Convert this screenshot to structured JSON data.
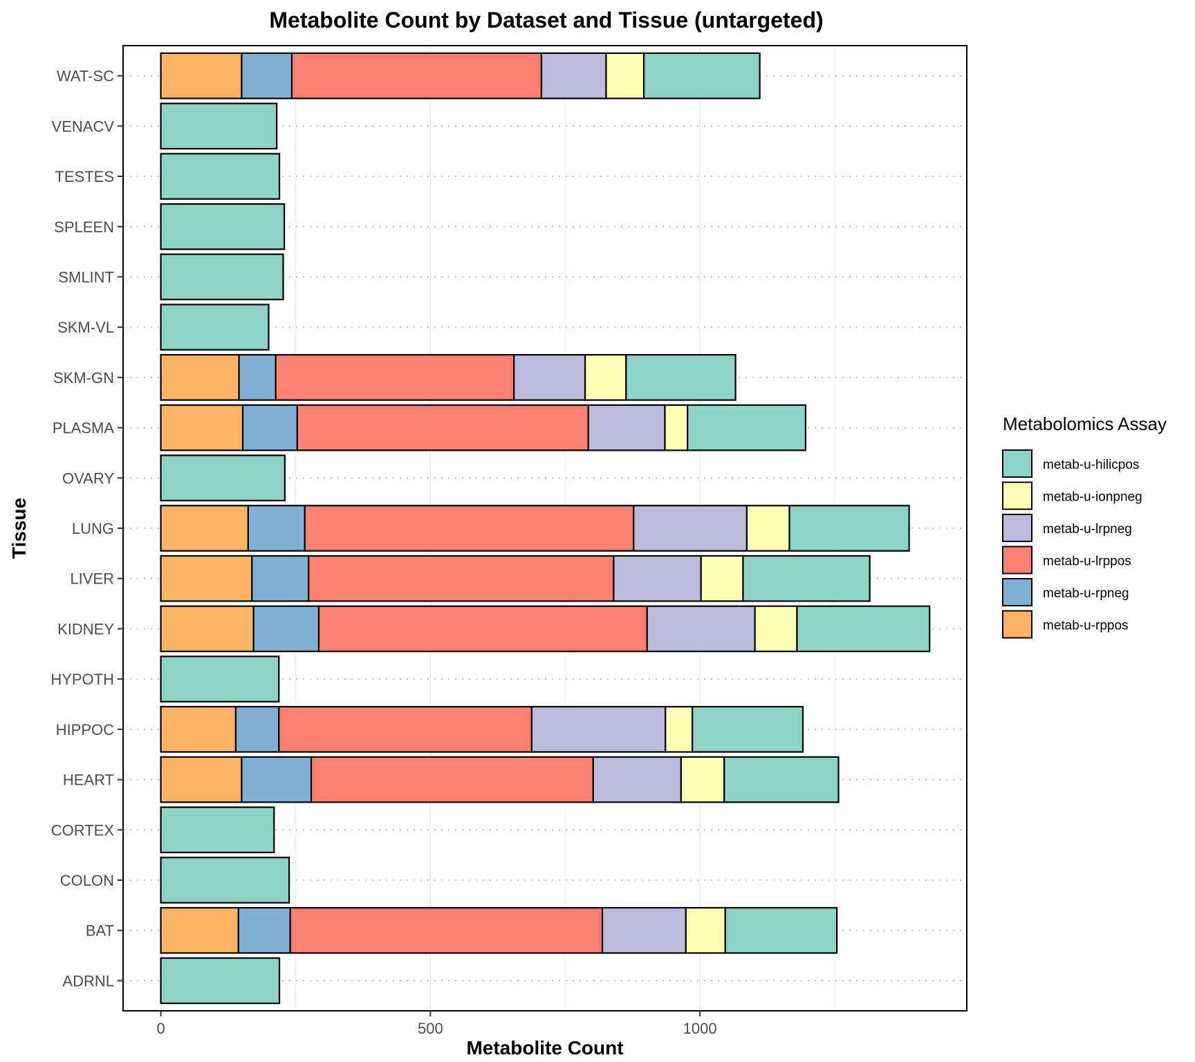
{
  "chart_data": {
    "type": "bar",
    "orientation": "horizontal",
    "stacked": true,
    "title": "Metabolite Count by Dataset and Tissue (untargeted)",
    "xlabel": "Metabolite Count",
    "ylabel": "Tissue",
    "xlim": [
      -70,
      1495
    ],
    "xticks": [
      0,
      500,
      1000
    ],
    "grid": "vertical major/minor lines; dotted horizontal row guides",
    "legend": {
      "title": "Metabolomics Assay",
      "placement": "right",
      "entries": [
        "metab-u-hilicpos",
        "metab-u-ionpneg",
        "metab-u-lrpneg",
        "metab-u-lrppos",
        "metab-u-rpneg",
        "metab-u-rppos"
      ]
    },
    "stack_order": [
      "metab-u-rppos",
      "metab-u-rpneg",
      "metab-u-lrppos",
      "metab-u-lrpneg",
      "metab-u-ionpneg",
      "metab-u-hilicpos"
    ],
    "colors": {
      "metab-u-hilicpos": "#8DD3C7",
      "metab-u-ionpneg": "#FFFFB3",
      "metab-u-lrpneg": "#BEBADA",
      "metab-u-lrppos": "#FB8072",
      "metab-u-rpneg": "#80B1D3",
      "metab-u-rppos": "#FDB462"
    },
    "categories": [
      "WAT-SC",
      "VENACV",
      "TESTES",
      "SPLEEN",
      "SMLINT",
      "SKM-VL",
      "SKM-GN",
      "PLASMA",
      "OVARY",
      "LUNG",
      "LIVER",
      "KIDNEY",
      "HYPOTH",
      "HIPPOC",
      "HEART",
      "CORTEX",
      "COLON",
      "BAT",
      "ADRNL"
    ],
    "series": [
      {
        "name": "metab-u-rppos",
        "values": [
          150,
          0,
          0,
          0,
          0,
          0,
          145,
          152,
          0,
          162,
          169,
          172,
          0,
          139,
          150,
          0,
          0,
          144,
          0
        ]
      },
      {
        "name": "metab-u-rpneg",
        "values": [
          93,
          0,
          0,
          0,
          0,
          0,
          68,
          101,
          0,
          105,
          105,
          121,
          0,
          80,
          129,
          0,
          0,
          96,
          0
        ]
      },
      {
        "name": "metab-u-lrppos",
        "values": [
          463,
          0,
          0,
          0,
          0,
          0,
          442,
          540,
          0,
          610,
          566,
          609,
          0,
          469,
          523,
          0,
          0,
          579,
          0
        ]
      },
      {
        "name": "metab-u-lrpneg",
        "values": [
          120,
          0,
          0,
          0,
          0,
          0,
          132,
          142,
          0,
          210,
          162,
          200,
          0,
          248,
          163,
          0,
          0,
          155,
          0
        ]
      },
      {
        "name": "metab-u-ionpneg",
        "values": [
          70,
          0,
          0,
          0,
          0,
          0,
          76,
          42,
          0,
          79,
          78,
          78,
          0,
          50,
          80,
          0,
          0,
          73,
          0
        ]
      },
      {
        "name": "metab-u-hilicpos",
        "values": [
          215,
          215,
          220,
          229,
          227,
          200,
          203,
          219,
          230,
          222,
          235,
          246,
          219,
          205,
          212,
          210,
          238,
          207,
          220
        ]
      }
    ]
  }
}
